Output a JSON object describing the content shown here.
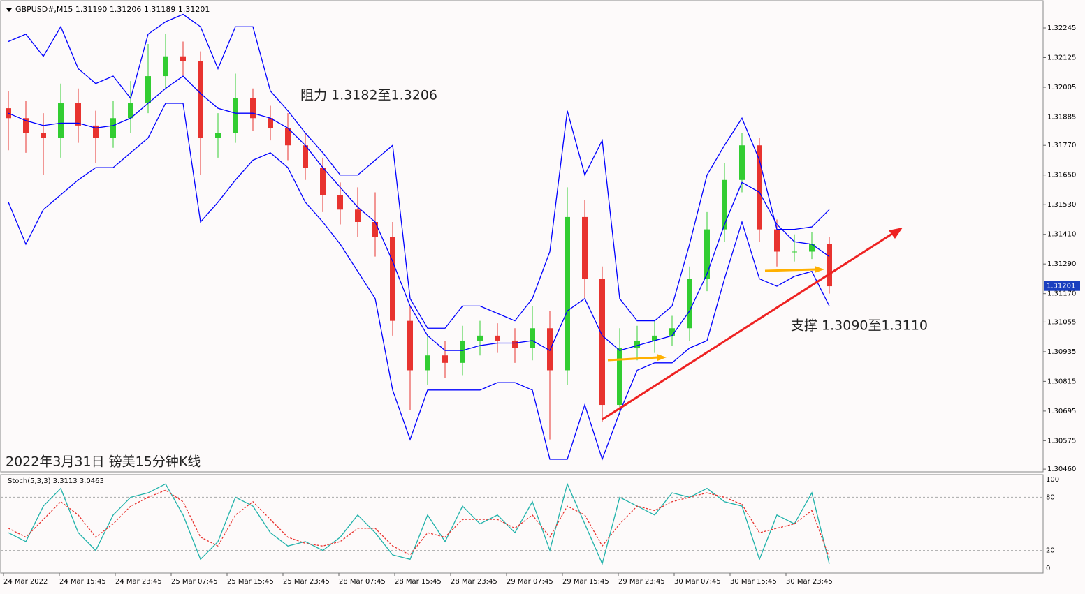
{
  "chart_data": {
    "type": "candlestick",
    "header": "GBPUSD#,M15  1.31190 1.31206 1.31189 1.31201",
    "caption": "2022年3月31日 镑美15分钟K线",
    "annotations": [
      "阻力 1.3182至1.3206",
      "支撑 1.3090至1.3110"
    ],
    "last_price": 1.31201,
    "ylim": [
      1.30449,
      1.32358
    ],
    "yticks": [
      1.32245,
      1.32125,
      1.32005,
      1.31885,
      {
        "value": 1.3177,
        "label": "1.31770"
      },
      {
        "value": 1.3165,
        "label": "1.31650"
      },
      {
        "value": 1.3153,
        "label": "1.31530"
      },
      {
        "value": 1.3141,
        "label": "1.31410"
      },
      {
        "value": 1.3129,
        "label": "1.31290"
      },
      {
        "value": 1.3117,
        "label": "1.31170"
      },
      1.31055,
      1.30935,
      1.30815,
      1.30695,
      1.30575,
      {
        "value": 1.3046,
        "label": "1.30460"
      }
    ],
    "x_labels": [
      "24 Mar 2022",
      "24 Mar 15:45",
      "24 Mar 23:45",
      "25 Mar 07:45",
      "25 Mar 15:45",
      "25 Mar 23:45",
      "28 Mar 07:45",
      "28 Mar 15:45",
      "28 Mar 23:45",
      "29 Mar 07:45",
      "29 Mar 15:45",
      "29 Mar 23:45",
      "30 Mar 07:45",
      "30 Mar 15:45",
      "30 Mar 23:45"
    ],
    "up_color": "#32cd32",
    "down_color": "#e8332f",
    "open": [
      1.3192,
      1.3188,
      1.3182,
      1.318,
      1.3194,
      1.3185,
      1.318,
      1.3188,
      1.3194,
      1.3205,
      1.3213,
      1.3211,
      1.318,
      1.3182,
      1.3196,
      1.3188,
      1.3184,
      1.3177,
      1.3168,
      1.3157,
      1.3151,
      1.3146,
      1.314,
      1.3106,
      1.3086,
      1.3092,
      1.3089,
      1.3098,
      1.31,
      1.3098,
      1.3095,
      1.3103,
      1.3086,
      1.3148,
      1.3123,
      1.3072,
      1.3095,
      1.3098,
      1.31,
      1.3103,
      1.3123,
      1.3143,
      1.3163,
      1.3177,
      1.3143,
      1.3134,
      1.3134,
      1.3137
    ],
    "high": [
      1.3199,
      1.3195,
      1.319,
      1.3202,
      1.32,
      1.3191,
      1.3195,
      1.3203,
      1.3218,
      1.3222,
      1.3219,
      1.3215,
      1.319,
      1.3206,
      1.32,
      1.3193,
      1.319,
      1.3182,
      1.3172,
      1.3162,
      1.316,
      1.3158,
      1.3146,
      1.3112,
      1.31,
      1.3098,
      1.3104,
      1.3106,
      1.3105,
      1.3103,
      1.3112,
      1.311,
      1.316,
      1.3155,
      1.3128,
      1.3103,
      1.3104,
      1.3106,
      1.3108,
      1.3128,
      1.315,
      1.317,
      1.3182,
      1.318,
      1.3147,
      1.3141,
      1.3142,
      1.314
    ],
    "low": [
      1.3175,
      1.3174,
      1.3165,
      1.3172,
      1.3178,
      1.317,
      1.3176,
      1.3182,
      1.319,
      1.32,
      1.3205,
      1.3165,
      1.3172,
      1.3178,
      1.3183,
      1.3179,
      1.3171,
      1.3163,
      1.315,
      1.3145,
      1.314,
      1.3132,
      1.31,
      1.307,
      1.308,
      1.3083,
      1.3084,
      1.3092,
      1.3093,
      1.3089,
      1.309,
      1.3058,
      1.308,
      1.3115,
      1.3065,
      1.3068,
      1.309,
      1.3093,
      1.3096,
      1.3098,
      1.3118,
      1.3138,
      1.3158,
      1.3138,
      1.3128,
      1.313,
      1.3131,
      1.3117
    ],
    "close": [
      1.3188,
      1.3182,
      1.318,
      1.3194,
      1.3185,
      1.318,
      1.3188,
      1.3194,
      1.3205,
      1.3213,
      1.3211,
      1.318,
      1.3182,
      1.3196,
      1.3188,
      1.3184,
      1.3177,
      1.3168,
      1.3157,
      1.3151,
      1.3146,
      1.314,
      1.3106,
      1.3086,
      1.3092,
      1.3089,
      1.3098,
      1.31,
      1.3098,
      1.3095,
      1.3103,
      1.3086,
      1.3148,
      1.3123,
      1.3072,
      1.3095,
      1.3098,
      1.31,
      1.3103,
      1.3123,
      1.3143,
      1.3163,
      1.3177,
      1.3143,
      1.3134,
      1.3134,
      1.3137,
      1.312
    ],
    "bands": [
      {
        "name": "upper",
        "color": "#0000ff",
        "values": [
          1.3219,
          1.3222,
          1.3213,
          1.3225,
          1.3208,
          1.3202,
          1.3205,
          1.3196,
          1.3222,
          1.3227,
          1.323,
          1.3225,
          1.3208,
          1.3225,
          1.3225,
          1.3199,
          1.3191,
          1.3182,
          1.3174,
          1.3165,
          1.3165,
          1.3171,
          1.3177,
          1.3115,
          1.3103,
          1.3103,
          1.3112,
          1.3112,
          1.3109,
          1.3106,
          1.3115,
          1.3134,
          1.3191,
          1.3165,
          1.3179,
          1.3115,
          1.3106,
          1.3106,
          1.3112,
          1.3137,
          1.3165,
          1.3177,
          1.3188,
          1.3171,
          1.3143,
          1.3143,
          1.3144,
          1.3151
        ]
      },
      {
        "name": "middle",
        "color": "#0000ff",
        "values": [
          1.319,
          1.3187,
          1.3185,
          1.3186,
          1.3186,
          1.3184,
          1.3185,
          1.3188,
          1.3194,
          1.32,
          1.3205,
          1.3198,
          1.3192,
          1.319,
          1.319,
          1.3188,
          1.3184,
          1.3177,
          1.3168,
          1.316,
          1.3152,
          1.3146,
          1.313,
          1.3112,
          1.31,
          1.3094,
          1.3094,
          1.3096,
          1.3097,
          1.3097,
          1.3098,
          1.3094,
          1.311,
          1.3115,
          1.31,
          1.3094,
          1.3096,
          1.3098,
          1.31,
          1.311,
          1.3125,
          1.3145,
          1.3162,
          1.3158,
          1.3145,
          1.3138,
          1.3137,
          1.3132
        ]
      },
      {
        "name": "lower",
        "color": "#0000ff",
        "values": [
          1.3154,
          1.3137,
          1.3151,
          1.3157,
          1.3163,
          1.3168,
          1.3168,
          1.3174,
          1.318,
          1.3194,
          1.3194,
          1.3146,
          1.3154,
          1.3163,
          1.3171,
          1.3174,
          1.3168,
          1.3154,
          1.3146,
          1.3137,
          1.3126,
          1.3115,
          1.3078,
          1.3058,
          1.3078,
          1.3078,
          1.3078,
          1.3078,
          1.3081,
          1.3081,
          1.3078,
          1.305,
          1.305,
          1.3072,
          1.305,
          1.3069,
          1.3086,
          1.3089,
          1.3089,
          1.3095,
          1.3098,
          1.3123,
          1.3146,
          1.3123,
          1.312,
          1.3124,
          1.3126,
          1.3112
        ]
      }
    ],
    "stoch": {
      "label": "Stoch(5,3,3) 3.3113 3.0463",
      "ylim": [
        0,
        100
      ],
      "yticks": [
        0,
        20,
        80,
        100
      ],
      "k": {
        "color": "#20b2aa",
        "values": [
          40,
          30,
          70,
          90,
          40,
          20,
          60,
          80,
          85,
          95,
          60,
          10,
          30,
          80,
          70,
          40,
          25,
          30,
          20,
          35,
          60,
          40,
          15,
          10,
          60,
          30,
          70,
          50,
          60,
          40,
          75,
          20,
          95,
          50,
          5,
          80,
          70,
          60,
          85,
          80,
          90,
          75,
          70,
          10,
          60,
          50,
          85,
          5
        ]
      },
      "d": {
        "color": "#e8332f",
        "values": [
          45,
          35,
          55,
          75,
          60,
          35,
          50,
          70,
          80,
          88,
          75,
          35,
          25,
          60,
          75,
          55,
          35,
          28,
          25,
          30,
          45,
          45,
          25,
          15,
          40,
          35,
          55,
          55,
          55,
          45,
          60,
          35,
          70,
          60,
          25,
          50,
          70,
          65,
          75,
          80,
          85,
          80,
          72,
          40,
          45,
          50,
          65,
          12
        ]
      }
    }
  }
}
